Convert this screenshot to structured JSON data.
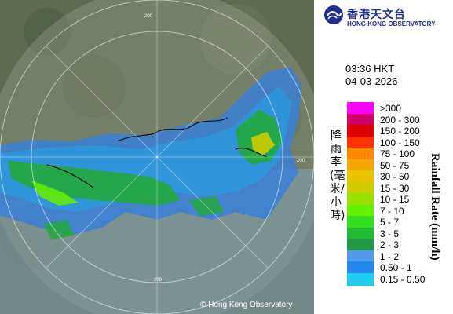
{
  "map": {
    "copyright": "© Hong Kong Observatory",
    "range_rings": [
      "200",
      "200",
      "200"
    ]
  },
  "logo": {
    "name_cn": "香港天文台",
    "name_en": "HONG KONG OBSERVATORY"
  },
  "timestamp": {
    "time": "03:36 HKT",
    "date": "04-03-2026"
  },
  "legend": {
    "title_cn": "降雨率(毫米/小時)",
    "title_en": "Rainfall Rate (mm/h)",
    "items": [
      {
        "label": ">300",
        "color": "#ff00ff"
      },
      {
        "label": "200 - 300",
        "color": "#cc0066"
      },
      {
        "label": "150 - 200",
        "color": "#dd0000"
      },
      {
        "label": "100 - 150",
        "color": "#ff3300"
      },
      {
        "label": "75 - 100",
        "color": "#ff8800"
      },
      {
        "label": "50 - 75",
        "color": "#f2a800"
      },
      {
        "label": "30 - 50",
        "color": "#e8c400"
      },
      {
        "label": "15 - 30",
        "color": "#cccc00"
      },
      {
        "label": "10 - 15",
        "color": "#99e000"
      },
      {
        "label": "7 - 10",
        "color": "#66f000"
      },
      {
        "label": "5 - 7",
        "color": "#33dd22"
      },
      {
        "label": "3 - 5",
        "color": "#22bb33"
      },
      {
        "label": "2 - 3",
        "color": "#229944"
      },
      {
        "label": "1 - 2",
        "color": "#5599ee"
      },
      {
        "label": "0.50 - 1",
        "color": "#2288ee"
      },
      {
        "label": "0.15 - 0.50",
        "color": "#22ccee"
      }
    ]
  }
}
